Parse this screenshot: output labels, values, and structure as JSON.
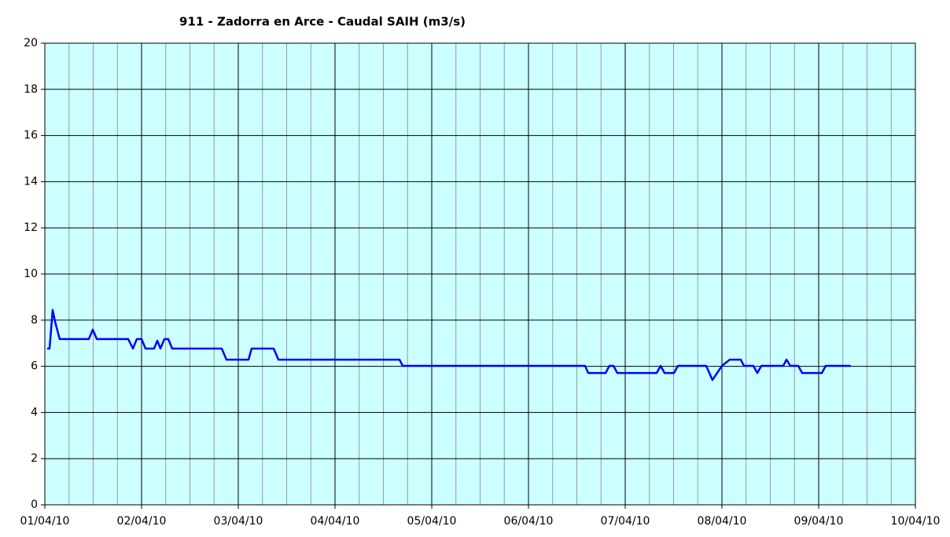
{
  "chart_data": {
    "type": "line",
    "title": "911 - Zadorra en Arce - Caudal SAIH (m3/s)",
    "color": "#0000ff",
    "background": "#ccffff",
    "grid": true,
    "minor_grid_step": 0.25,
    "xlim": [
      0,
      9
    ],
    "xticks": [
      {
        "value": 0,
        "label": "01/04/10"
      },
      {
        "value": 1,
        "label": "02/04/10"
      },
      {
        "value": 2,
        "label": "03/04/10"
      },
      {
        "value": 3,
        "label": "04/04/10"
      },
      {
        "value": 4,
        "label": "05/04/10"
      },
      {
        "value": 5,
        "label": "06/04/10"
      },
      {
        "value": 6,
        "label": "07/04/10"
      },
      {
        "value": 7,
        "label": "08/04/10"
      },
      {
        "value": 8,
        "label": "09/04/10"
      },
      {
        "value": 9,
        "label": "10/04/10"
      }
    ],
    "ylim": [
      0,
      20
    ],
    "yticks": [
      0,
      2,
      4,
      6,
      8,
      10,
      12,
      14,
      16,
      18,
      20
    ],
    "x": [
      0.024,
      0.049,
      0.081,
      0.106,
      0.154,
      0.455,
      0.496,
      0.537,
      0.862,
      0.911,
      0.951,
      1.0,
      1.041,
      1.13,
      1.163,
      1.195,
      1.236,
      1.276,
      1.317,
      1.829,
      1.878,
      2.106,
      2.138,
      2.366,
      2.415,
      3.667,
      3.699,
      5.585,
      5.618,
      5.797,
      5.837,
      5.878,
      5.919,
      6.325,
      6.366,
      6.407,
      6.504,
      6.545,
      6.837,
      6.902,
      7.0,
      7.081,
      7.195,
      7.228,
      7.325,
      7.366,
      7.407,
      7.634,
      7.667,
      7.707,
      7.789,
      7.829,
      8.033,
      8.073,
      8.333
    ],
    "values": [
      6.77,
      6.77,
      8.44,
      7.93,
      7.18,
      7.18,
      7.59,
      7.18,
      7.18,
      6.77,
      7.18,
      7.18,
      6.77,
      6.77,
      7.11,
      6.77,
      7.18,
      7.18,
      6.77,
      6.77,
      6.29,
      6.29,
      6.77,
      6.77,
      6.29,
      6.29,
      6.02,
      6.02,
      5.71,
      5.71,
      6.02,
      6.02,
      5.71,
      5.71,
      6.02,
      5.71,
      5.71,
      6.02,
      6.02,
      5.41,
      6.02,
      6.29,
      6.29,
      6.02,
      6.02,
      5.71,
      6.02,
      6.02,
      6.29,
      6.02,
      6.02,
      5.71,
      5.71,
      6.02,
      6.02
    ]
  }
}
